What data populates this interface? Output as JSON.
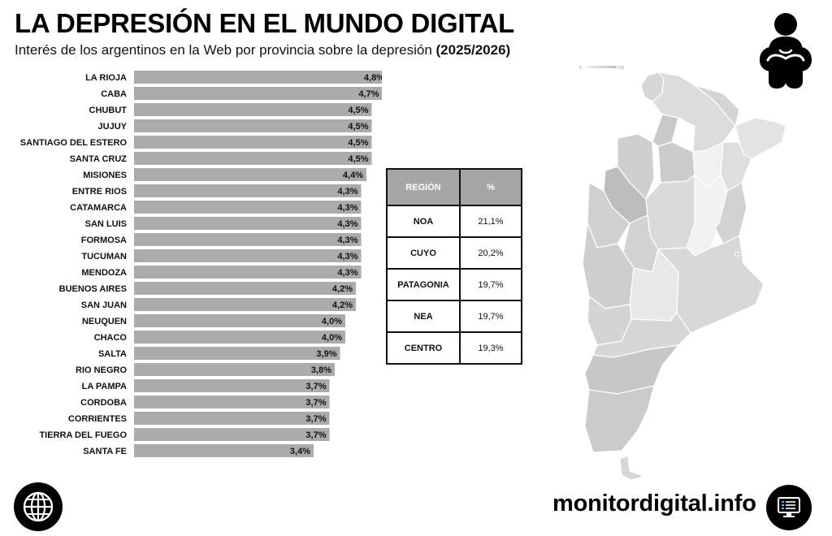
{
  "header": {
    "title": "LA DEPRESIÓN EN EL MUNDO DIGITAL",
    "subtitle_text": "Interés de los argentinos en la Web por provincia sobre la depresión",
    "subtitle_period": "(2025/2026)"
  },
  "chart_data": {
    "type": "bar",
    "orientation": "horizontal",
    "title": "",
    "xlabel": "",
    "ylabel": "",
    "categories": [
      "LA RIOJA",
      "CABA",
      "CHUBUT",
      "JUJUY",
      "SANTIAGO DEL ESTERO",
      "SANTA CRUZ",
      "MISIONES",
      "ENTRE RIOS",
      "CATAMARCA",
      "SAN LUIS",
      "FORMOSA",
      "TUCUMAN",
      "MENDOZA",
      "BUENOS AIRES",
      "SAN JUAN",
      "NEUQUEN",
      "CHACO",
      "SALTA",
      "RIO NEGRO",
      "LA PAMPA",
      "CORDOBA",
      "CORRIENTES",
      "TIERRA DEL FUEGO",
      "SANTA FE"
    ],
    "values": [
      4.8,
      4.7,
      4.5,
      4.5,
      4.5,
      4.5,
      4.4,
      4.3,
      4.3,
      4.3,
      4.3,
      4.3,
      4.3,
      4.2,
      4.2,
      4.0,
      4.0,
      3.9,
      3.8,
      3.7,
      3.7,
      3.7,
      3.7,
      3.4
    ],
    "value_labels": [
      "4,8%",
      "4,7%",
      "4,5%",
      "4,5%",
      "4,5%",
      "4,5%",
      "4,4%",
      "4,3%",
      "4,3%",
      "4,3%",
      "4,3%",
      "4,3%",
      "4,3%",
      "4,2%",
      "4,2%",
      "4,0%",
      "4,0%",
      "3,9%",
      "3,8%",
      "3,7%",
      "3,7%",
      "3,7%",
      "3,7%",
      "3,4%"
    ],
    "xlim": [
      0,
      5
    ],
    "bar_color": "#ababab"
  },
  "region_table": {
    "headers": [
      "REGIÓN",
      "%"
    ],
    "rows": [
      [
        "NOA",
        "21,1%"
      ],
      [
        "CUYO",
        "20,2%"
      ],
      [
        "PATAGONIA",
        "19,7%"
      ],
      [
        "NEA",
        "19,7%"
      ],
      [
        "CENTRO",
        "19,3%"
      ]
    ]
  },
  "map": {
    "legend_min": "0",
    "legend_max": "100"
  },
  "footer": {
    "brand": "monitordigital.info",
    "left_icon": "globe-icon",
    "right_icon": "monitor-dashboard-icon"
  },
  "icons": {
    "header_icon": "person-hugging-knees-icon"
  },
  "colors": {
    "bar": "#ababab",
    "table_header": "#a6a6a6",
    "text": "#111111"
  }
}
